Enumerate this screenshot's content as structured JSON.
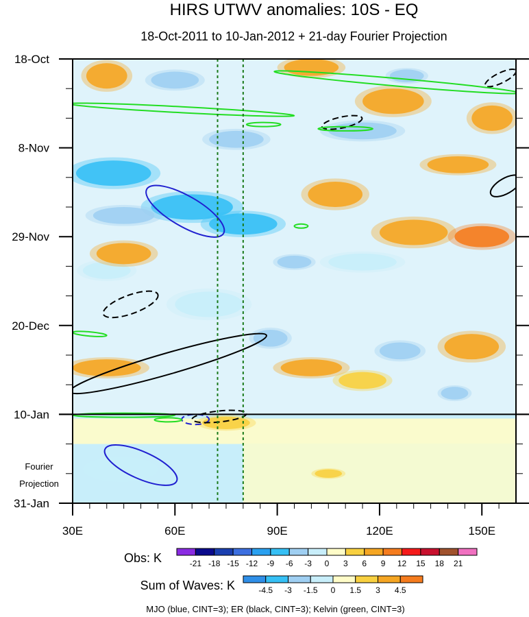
{
  "chart_data": {
    "type": "heatmap",
    "title": "HIRS UTWV anomalies: 10S - EQ",
    "subtitle": "18-Oct-2011 to 10-Jan-2012 + 21-day Fourier Projection",
    "x_axis": {
      "range": [
        30,
        160
      ],
      "ticks": [
        30,
        60,
        90,
        120,
        150
      ],
      "tick_labels": [
        "30E",
        "60E",
        "90E",
        "120E",
        "150E"
      ]
    },
    "y_axis": {
      "range_days": [
        0,
        105
      ],
      "ticks_days": [
        0,
        21,
        42,
        63,
        84,
        105
      ],
      "tick_labels": [
        "18-Oct",
        "8-Nov",
        "29-Nov",
        "20-Dec",
        "10-Jan",
        "31-Jan"
      ]
    },
    "observation_end_day": 84,
    "reference_longitudes": [
      72.5,
      80
    ],
    "projection_label": [
      "Fourier",
      "Projection"
    ],
    "obs_colorbar": {
      "label": "Obs: K",
      "levels": [
        -21,
        -18,
        -15,
        -12,
        -9,
        -6,
        -3,
        0,
        3,
        6,
        9,
        12,
        15,
        18,
        21
      ],
      "colors": [
        "#8a2be2",
        "#0a0a8c",
        "#1a3fb0",
        "#3c6fe0",
        "#2aa0f0",
        "#36c0f5",
        "#9fcff2",
        "#c8eefa",
        "#fffcc8",
        "#f8d040",
        "#f5a623",
        "#f57c1e",
        "#f51a1a",
        "#c8102e",
        "#a0522d",
        "#f070c0"
      ]
    },
    "waves_colorbar": {
      "label": "Sum of Waves: K",
      "levels": [
        "-4.5",
        "-3",
        "-1.5",
        "0",
        "1.5",
        "3",
        "4.5"
      ],
      "colors": [
        "#2f8fe8",
        "#36c0f5",
        "#9fcff2",
        "#c8eefa",
        "#fffcc8",
        "#f8d040",
        "#f5a623",
        "#f57c1e"
      ]
    },
    "footnote": "MJO (blue, CINT=3); ER (black, CINT=3); Kelvin (green, CINT=3)",
    "contours": [
      {
        "wave": "MJO",
        "color": "#2020d0",
        "style": "solid",
        "cx": 63,
        "cy": 36,
        "rx": 13,
        "ry": 3.6,
        "angle": 30
      },
      {
        "wave": "MJO",
        "color": "#2020d0",
        "style": "solid",
        "cx": 50,
        "cy": 96,
        "rx": 11.5,
        "ry": 3.2,
        "angle": 24
      },
      {
        "wave": "MJO",
        "color": "#2020d0",
        "style": "dashed",
        "cx": 66,
        "cy": 85.2,
        "rx": 4,
        "ry": 1.2,
        "angle": 0
      },
      {
        "wave": "ER",
        "color": "#000000",
        "style": "dashed",
        "cx": 47,
        "cy": 58,
        "rx": 8.5,
        "ry": 2.2,
        "angle": -20
      },
      {
        "wave": "ER",
        "color": "#000000",
        "style": "dashed",
        "cx": 109,
        "cy": 15,
        "rx": 6,
        "ry": 1.3,
        "angle": -12
      },
      {
        "wave": "ER",
        "color": "#000000",
        "style": "dashed",
        "cx": 155.5,
        "cy": 4.5,
        "rx": 5,
        "ry": 1.2,
        "angle": -26
      },
      {
        "wave": "ER",
        "color": "#000000",
        "style": "dashed",
        "cx": 73,
        "cy": 84.5,
        "rx": 8,
        "ry": 1.3,
        "angle": -6
      },
      {
        "wave": "ER",
        "color": "#000000",
        "style": "solid",
        "cx": 58,
        "cy": 72,
        "rx": 30,
        "ry": 2.5,
        "angle": -16
      },
      {
        "wave": "ER",
        "color": "#000000",
        "style": "solid",
        "cx": 157,
        "cy": 30,
        "rx": 5,
        "ry": 1.8,
        "angle": -30
      },
      {
        "wave": "Kelvin",
        "color": "#22dd22",
        "style": "solid",
        "cx": 125,
        "cy": 5.5,
        "rx": 36,
        "ry": 0.9,
        "angle": 5
      },
      {
        "wave": "Kelvin",
        "color": "#22dd22",
        "style": "solid",
        "cx": 62,
        "cy": 12,
        "rx": 33,
        "ry": 0.7,
        "angle": 3
      },
      {
        "wave": "Kelvin",
        "color": "#22dd22",
        "style": "solid",
        "cx": 110,
        "cy": 16.5,
        "rx": 8,
        "ry": 0.5,
        "angle": 0
      },
      {
        "wave": "Kelvin",
        "color": "#22dd22",
        "style": "solid",
        "cx": 86,
        "cy": 15.5,
        "rx": 5,
        "ry": 0.4,
        "angle": 0
      },
      {
        "wave": "Kelvin",
        "color": "#22dd22",
        "style": "solid",
        "cx": 35,
        "cy": 65,
        "rx": 5,
        "ry": 0.5,
        "angle": 5
      },
      {
        "wave": "Kelvin",
        "color": "#22dd22",
        "style": "solid",
        "cx": 45,
        "cy": 84.2,
        "rx": 15,
        "ry": 0.3,
        "angle": 0
      },
      {
        "wave": "Kelvin",
        "color": "#22dd22",
        "style": "solid",
        "cx": 58,
        "cy": 85.3,
        "rx": 4,
        "ry": 0.3,
        "angle": 0
      },
      {
        "wave": "Kelvin",
        "color": "#22dd22",
        "style": "solid",
        "cx": 97,
        "cy": 39.5,
        "rx": 2,
        "ry": 0.3,
        "angle": 0
      }
    ],
    "anomaly_blobs": [
      {
        "x": 42,
        "y": 27,
        "rx": 11,
        "ry": 3,
        "value": -9
      },
      {
        "x": 65,
        "y": 35,
        "rx": 12,
        "ry": 3,
        "value": -9
      },
      {
        "x": 80,
        "y": 39,
        "rx": 10,
        "ry": 2.5,
        "value": -9
      },
      {
        "x": 45,
        "y": 37,
        "rx": 9,
        "ry": 2,
        "value": -6
      },
      {
        "x": 60,
        "y": 5,
        "rx": 7,
        "ry": 2,
        "value": -6
      },
      {
        "x": 78,
        "y": 19,
        "rx": 8,
        "ry": 2,
        "value": -6
      },
      {
        "x": 115,
        "y": 17,
        "rx": 10,
        "ry": 2,
        "value": -6
      },
      {
        "x": 128,
        "y": 4,
        "rx": 5,
        "ry": 1.5,
        "value": -6
      },
      {
        "x": 95,
        "y": 48,
        "rx": 5,
        "ry": 1.5,
        "value": -6
      },
      {
        "x": 88,
        "y": 66,
        "rx": 5,
        "ry": 2,
        "value": -6
      },
      {
        "x": 126,
        "y": 69,
        "rx": 6,
        "ry": 2,
        "value": -6
      },
      {
        "x": 142,
        "y": 79,
        "rx": 4,
        "ry": 1.5,
        "value": -6
      },
      {
        "x": 44,
        "y": 97,
        "rx": 11,
        "ry": 3,
        "value": -3
      },
      {
        "x": 115,
        "y": 48,
        "rx": 10,
        "ry": 2,
        "value": -3
      },
      {
        "x": 70,
        "y": 58,
        "rx": 10,
        "ry": 3,
        "value": -3
      },
      {
        "x": 40,
        "y": 50,
        "rx": 7,
        "ry": 2,
        "value": -3
      },
      {
        "x": 40,
        "y": 4,
        "rx": 6,
        "ry": 3,
        "value": 6
      },
      {
        "x": 45,
        "y": 46,
        "rx": 8,
        "ry": 2.5,
        "value": 6
      },
      {
        "x": 40,
        "y": 73,
        "rx": 10,
        "ry": 2,
        "value": 6
      },
      {
        "x": 75,
        "y": 86,
        "rx": 7,
        "ry": 1.5,
        "value": 3
      },
      {
        "x": 124,
        "y": 10,
        "rx": 9,
        "ry": 3,
        "value": 6
      },
      {
        "x": 100,
        "y": 2,
        "rx": 8,
        "ry": 2,
        "value": 6
      },
      {
        "x": 143,
        "y": 25,
        "rx": 9,
        "ry": 2,
        "value": 6
      },
      {
        "x": 130,
        "y": 41,
        "rx": 10,
        "ry": 3,
        "value": 6
      },
      {
        "x": 150,
        "y": 42,
        "rx": 8,
        "ry": 2.5,
        "value": 9
      },
      {
        "x": 107,
        "y": 32,
        "rx": 8,
        "ry": 3,
        "value": 6
      },
      {
        "x": 153,
        "y": 14,
        "rx": 6,
        "ry": 3,
        "value": 6
      },
      {
        "x": 100,
        "y": 73,
        "rx": 9,
        "ry": 2,
        "value": 6
      },
      {
        "x": 147,
        "y": 68,
        "rx": 8,
        "ry": 3,
        "value": 6
      },
      {
        "x": 115,
        "y": 76,
        "rx": 7,
        "ry": 2,
        "value": 3
      },
      {
        "x": 105,
        "y": 98,
        "rx": 4,
        "ry": 1,
        "value": 3
      }
    ]
  }
}
